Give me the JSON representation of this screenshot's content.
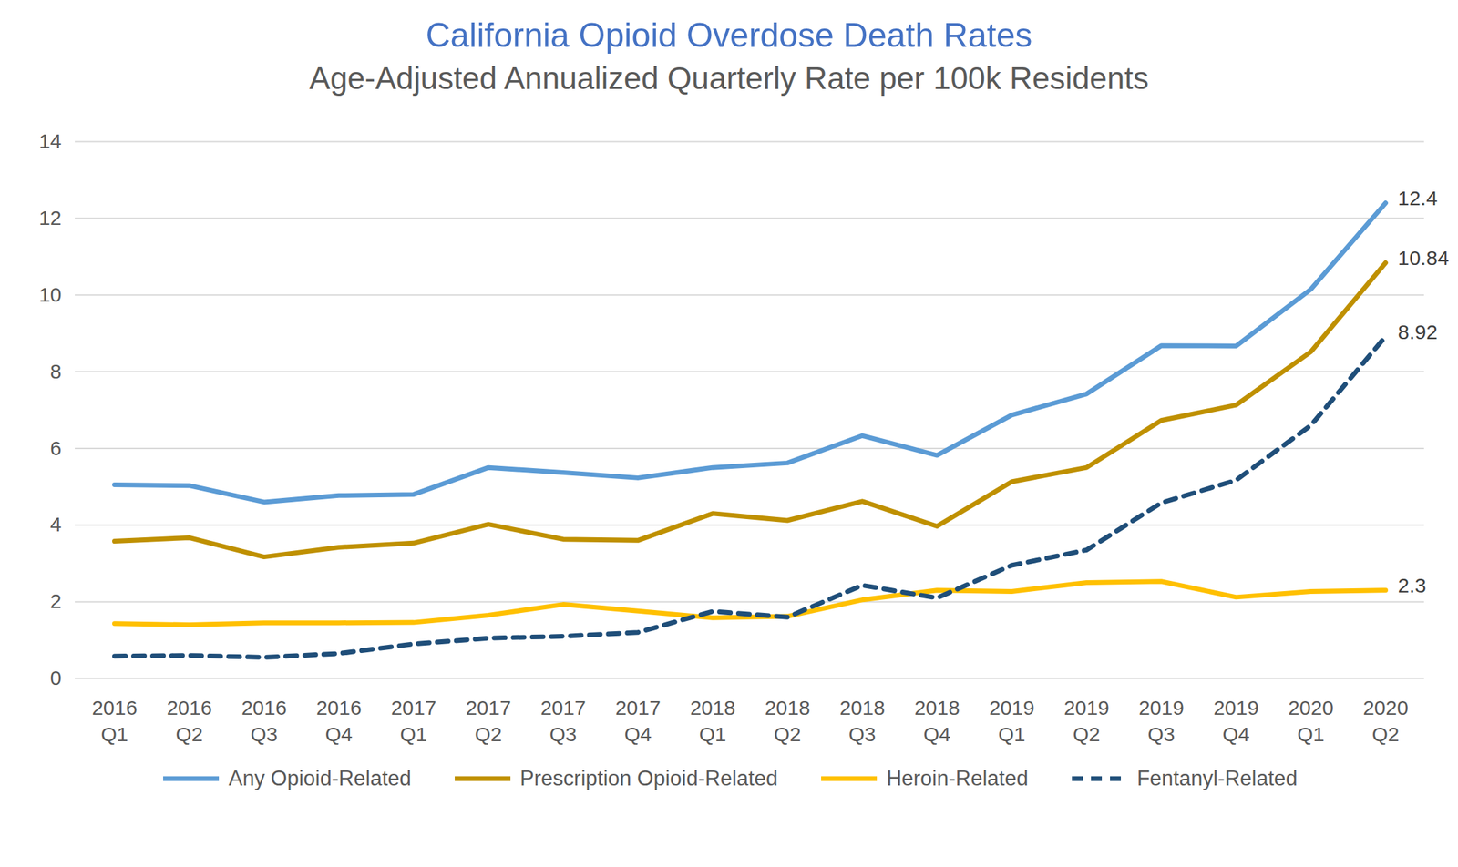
{
  "chart_data": {
    "type": "line",
    "title": "California Opioid Overdose Death Rates",
    "subtitle": "Age-Adjusted Annualized Quarterly Rate per 100k Residents",
    "categories": [
      "2016 Q1",
      "2016 Q2",
      "2016 Q3",
      "2016 Q4",
      "2017 Q1",
      "2017 Q2",
      "2017 Q3",
      "2017 Q4",
      "2018 Q1",
      "2018 Q2",
      "2018 Q3",
      "2018 Q4",
      "2019 Q1",
      "2019 Q2",
      "2019 Q3",
      "2019 Q4",
      "2020 Q1",
      "2020 Q2"
    ],
    "series": [
      {
        "name": "Any Opioid-Related",
        "color": "#5b9bd5",
        "line_style": "solid",
        "values": [
          5.05,
          5.03,
          4.6,
          4.77,
          4.8,
          5.5,
          5.37,
          5.23,
          5.5,
          5.62,
          6.33,
          5.82,
          6.87,
          7.42,
          8.68,
          8.67,
          10.15,
          12.4
        ]
      },
      {
        "name": "Prescription Opioid-Related",
        "color": "#bf9000",
        "line_style": "solid",
        "values": [
          3.58,
          3.67,
          3.17,
          3.42,
          3.53,
          4.02,
          3.63,
          3.6,
          4.3,
          4.12,
          4.62,
          3.97,
          5.13,
          5.5,
          6.73,
          7.13,
          8.52,
          10.84
        ]
      },
      {
        "name": "Heroin-Related",
        "color": "#ffc000",
        "line_style": "solid",
        "values": [
          1.43,
          1.4,
          1.45,
          1.45,
          1.46,
          1.65,
          1.93,
          1.76,
          1.58,
          1.62,
          2.05,
          2.3,
          2.27,
          2.5,
          2.53,
          2.12,
          2.27,
          2.3
        ]
      },
      {
        "name": "Fentanyl-Related",
        "color": "#1f4e79",
        "line_style": "dashed",
        "values": [
          0.58,
          0.6,
          0.55,
          0.65,
          0.9,
          1.05,
          1.1,
          1.2,
          1.75,
          1.6,
          2.43,
          2.1,
          2.95,
          3.35,
          4.58,
          5.17,
          6.6,
          8.92
        ]
      }
    ],
    "annotations": [
      {
        "x": "2020 Q2",
        "y": 12.4,
        "text": "12.4"
      },
      {
        "x": "2020 Q2",
        "y": 10.84,
        "text": "10.84"
      },
      {
        "x": "2020 Q2",
        "y": 8.92,
        "text": "8.92"
      },
      {
        "x": "2020 Q2",
        "y": 2.3,
        "text": "2.3"
      }
    ],
    "ylim": [
      0,
      14
    ],
    "yticks": [
      0,
      2,
      4,
      6,
      8,
      10,
      12,
      14
    ],
    "grid": true,
    "legend": "bottom"
  }
}
